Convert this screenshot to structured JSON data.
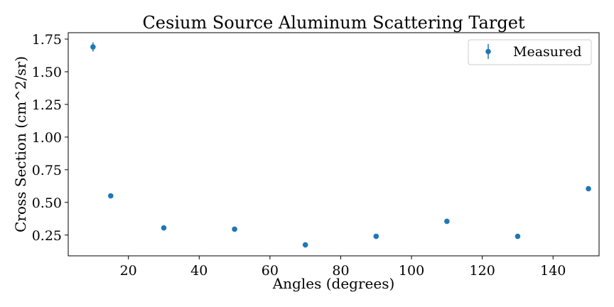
{
  "chart_data": {
    "type": "scatter",
    "title": "Cesium Source Aluminum Scattering Target",
    "xlabel": "Angles (degrees)",
    "ylabel": "Cross Section (cm^2/sr)",
    "xlim": [
      2.995,
      153.0
    ],
    "ylim": [
      0.091,
      1.799
    ],
    "xticks": [
      20,
      40,
      60,
      80,
      100,
      120,
      140
    ],
    "yticks": [
      0.25,
      0.5,
      0.75,
      1.0,
      1.25,
      1.5,
      1.75
    ],
    "ytick_labels": [
      "0.25",
      "0.50",
      "0.75",
      "1.00",
      "1.25",
      "1.50",
      "1.75"
    ],
    "grid": false,
    "legend_position": "top-right",
    "series": [
      {
        "name": "Measured",
        "color": "#1f77b4",
        "marker": "circle",
        "error_bars": true,
        "points": [
          {
            "x": 10,
            "y": 1.69,
            "err": 0.035
          },
          {
            "x": 15,
            "y": 0.55,
            "err": 0.008
          },
          {
            "x": 30,
            "y": 0.305,
            "err": 0.005
          },
          {
            "x": 50,
            "y": 0.295,
            "err": 0.005
          },
          {
            "x": 70,
            "y": 0.175,
            "err": 0.004
          },
          {
            "x": 90,
            "y": 0.24,
            "err": 0.004
          },
          {
            "x": 110,
            "y": 0.355,
            "err": 0.005
          },
          {
            "x": 130,
            "y": 0.24,
            "err": 0.004
          },
          {
            "x": 150,
            "y": 0.605,
            "err": 0.008
          }
        ]
      }
    ]
  }
}
